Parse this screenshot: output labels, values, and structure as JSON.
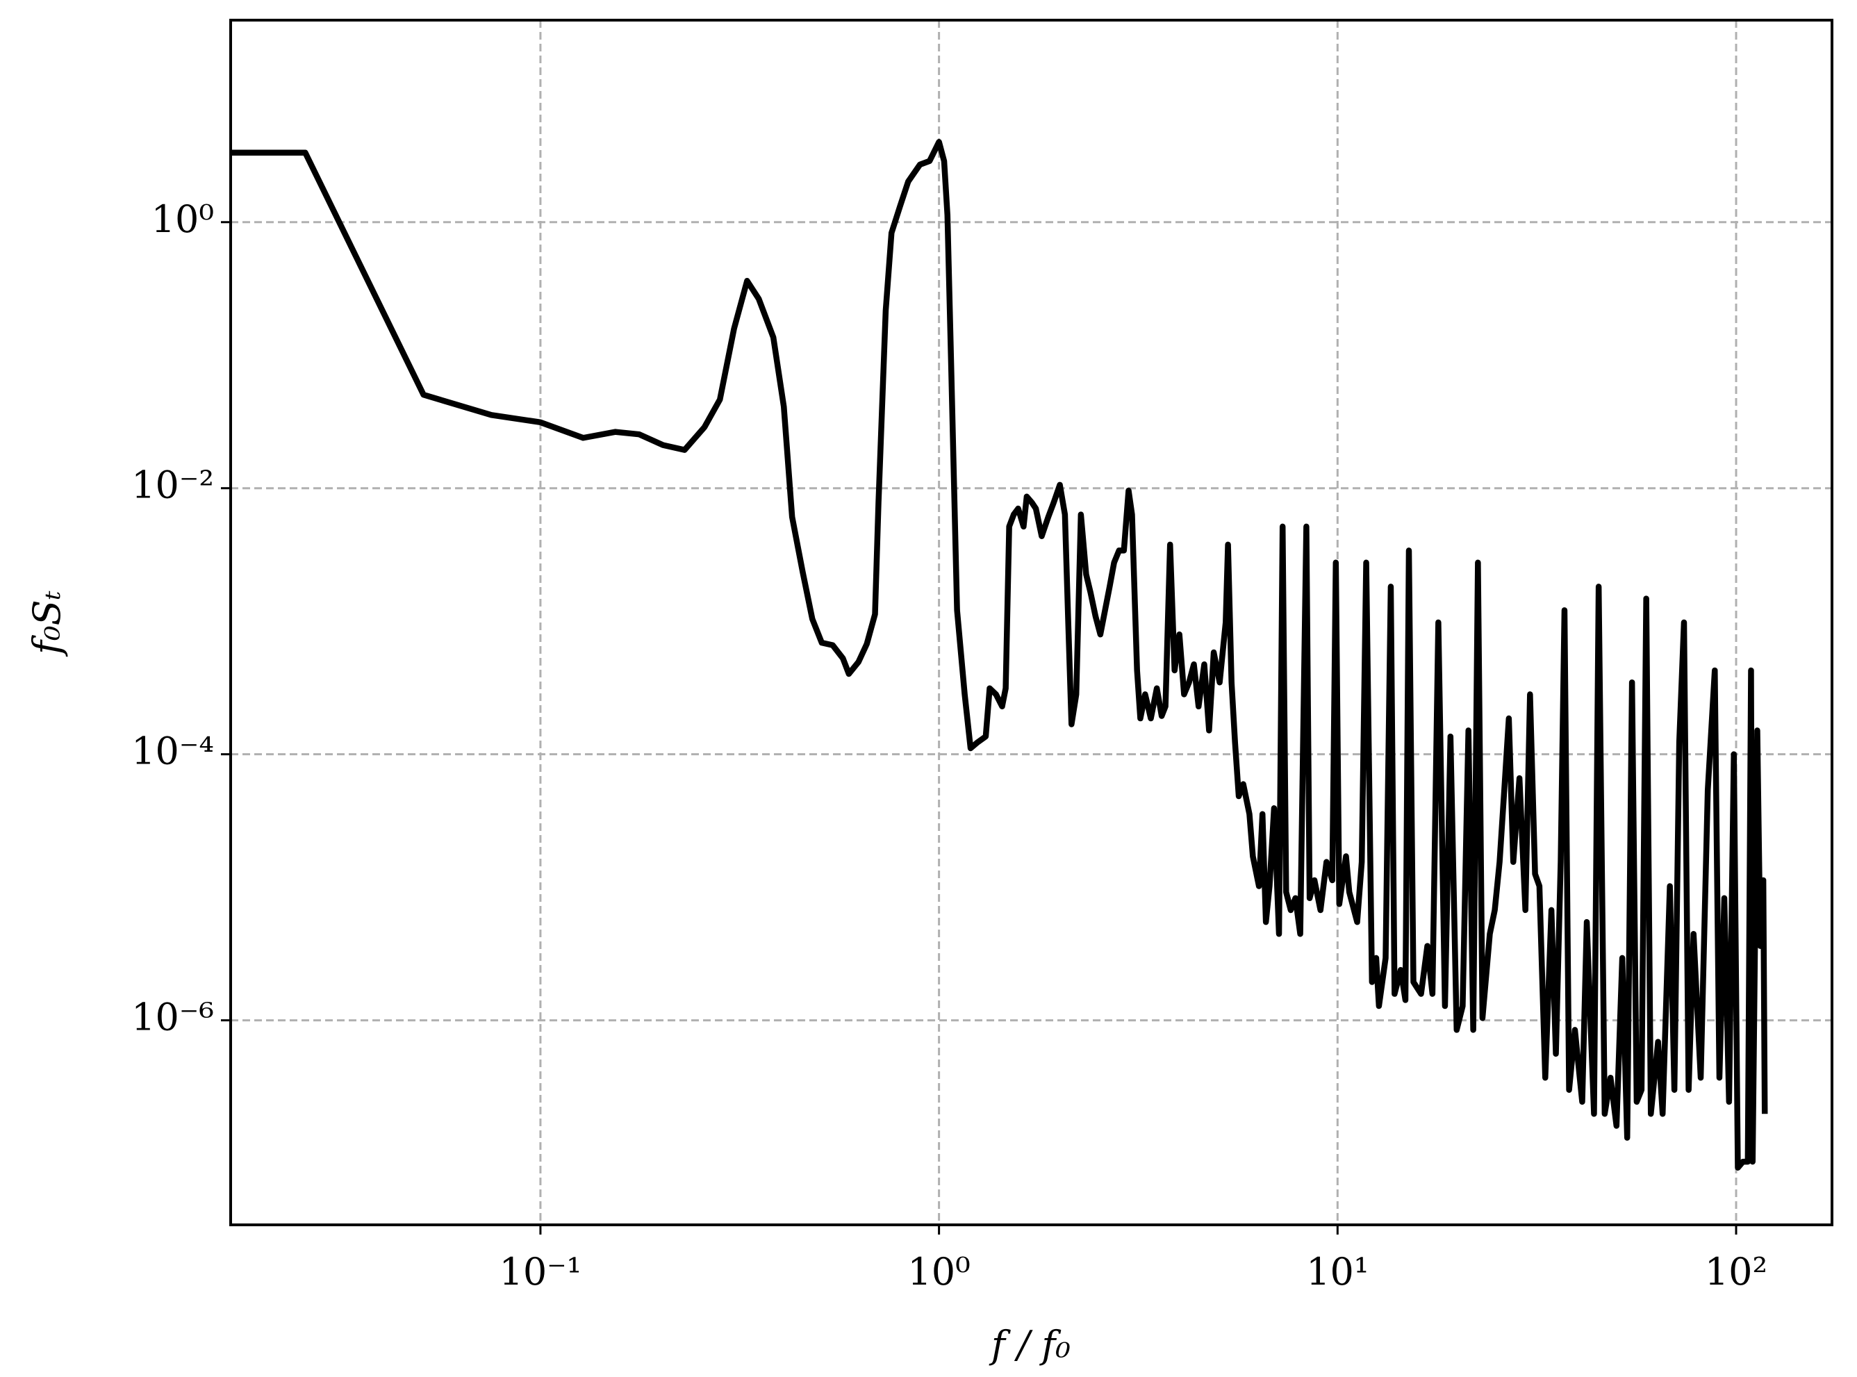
{
  "chart_data": {
    "type": "line",
    "xlabel": "f / f₀",
    "ylabel": "f₀Sₜ",
    "xscale": "log",
    "yscale": "log",
    "grid": true,
    "color": "#000000",
    "xlim": [
      0.0167,
      174
    ],
    "ylim": [
      2.9e-08,
      33
    ],
    "xticks": [
      {
        "value": 0.1,
        "label": "10⁻¹"
      },
      {
        "value": 1,
        "label": "10⁰"
      },
      {
        "value": 10,
        "label": "10¹"
      },
      {
        "value": 100,
        "label": "10²"
      }
    ],
    "yticks": [
      {
        "value": 1e-06,
        "label": "10⁻⁶"
      },
      {
        "value": 0.0001,
        "label": "10⁻⁴"
      },
      {
        "value": 0.01,
        "label": "10⁻²"
      },
      {
        "value": 1,
        "label": "10⁰"
      }
    ],
    "x": [
      0.0167,
      0.0257,
      0.0509,
      0.0753,
      0.1,
      0.128,
      0.154,
      0.177,
      0.203,
      0.23,
      0.258,
      0.282,
      0.306,
      0.33,
      0.353,
      0.384,
      0.408,
      0.428,
      0.455,
      0.481,
      0.508,
      0.541,
      0.574,
      0.594,
      0.628,
      0.659,
      0.691,
      0.705,
      0.735,
      0.76,
      0.798,
      0.837,
      0.896,
      0.947,
      1.0,
      1.03,
      1.05,
      1.07,
      1.11,
      1.16,
      1.2,
      1.25,
      1.31,
      1.34,
      1.39,
      1.44,
      1.47,
      1.5,
      1.54,
      1.58,
      1.63,
      1.66,
      1.71,
      1.75,
      1.81,
      1.88,
      1.94,
      2.01,
      2.07,
      2.11,
      2.15,
      2.21,
      2.27,
      2.34,
      2.4,
      2.47,
      2.54,
      2.61,
      2.68,
      2.75,
      2.83,
      2.91,
      2.99,
      3.05,
      3.14,
      3.2,
      3.29,
      3.4,
      3.52,
      3.62,
      3.7,
      3.8,
      3.9,
      4.01,
      4.12,
      4.24,
      4.36,
      4.48,
      4.63,
      4.76,
      4.89,
      5.06,
      5.24,
      5.31,
      5.42,
      5.53,
      5.65,
      5.8,
      6.01,
      6.13,
      6.35,
      6.48,
      6.61,
      6.75,
      6.93,
      7.13,
      7.28,
      7.43,
      7.63,
      7.84,
      8.06,
      8.35,
      8.51,
      8.75,
      9.06,
      9.38,
      9.7,
      9.9,
      10.1,
      10.5,
      10.7,
      11.2,
      11.5,
      11.8,
      12.2,
      12.5,
      12.7,
      13.2,
      13.6,
      13.9,
      14.4,
      14.8,
      15.1,
      15.5,
      16.2,
      16.8,
      17.3,
      17.9,
      18.6,
      19.2,
      19.9,
      20.6,
      21.3,
      21.9,
      22.5,
      23.1,
      24.1,
      24.8,
      25.5,
      26.2,
      26.9,
      27.6,
      28.6,
      29.6,
      30.4,
      31.3,
      32.1,
      33.2,
      34.4,
      35.3,
      36.3,
      37.1,
      38.1,
      39.4,
      41.1,
      42.2,
      44.0,
      45.2,
      46.8,
      48.4,
      50.1,
      51.8,
      53.3,
      54.8,
      56.3,
      57.9,
      59.5,
      61.1,
      63.7,
      65.4,
      68.2,
      70.0,
      72.0,
      74.0,
      76.0,
      78.2,
      81.5,
      84.9,
      88.4,
      90.8,
      93.4,
      96.0,
      98.7,
      101,
      104,
      107,
      109,
      110,
      113,
      115,
      117,
      118
    ],
    "values": [
      3.33,
      3.33,
      0.0504,
      0.0355,
      0.0313,
      0.0239,
      0.0265,
      0.0254,
      0.0211,
      0.0194,
      0.0288,
      0.0464,
      0.158,
      0.362,
      0.265,
      0.136,
      0.041,
      0.00608,
      0.00234,
      0.00104,
      0.000689,
      0.000661,
      0.000526,
      0.000402,
      0.000494,
      0.000675,
      0.00113,
      0.0078,
      0.216,
      0.83,
      1.31,
      2.02,
      2.71,
      2.88,
      4.01,
      2.88,
      1.13,
      0.116,
      0.00121,
      0.000282,
      0.000111,
      0.000123,
      0.000136,
      0.000313,
      0.000282,
      0.000229,
      0.000313,
      0.00515,
      0.00634,
      0.00703,
      0.00515,
      0.00865,
      0.0078,
      0.00703,
      0.00436,
      0.00608,
      0.0078,
      0.0106,
      0.00634,
      0.00098,
      0.000168,
      0.000282,
      0.00634,
      0.00225,
      0.00164,
      0.00109,
      0.000796,
      0.00121,
      0.00182,
      0.00276,
      0.0034,
      0.0034,
      0.0096,
      0.00634,
      0.000427,
      0.000186,
      0.000282,
      0.000186,
      0.000313,
      0.000194,
      0.000229,
      0.00377,
      0.000427,
      0.000796,
      0.000282,
      0.000347,
      0.000474,
      0.000229,
      0.000474,
      0.000151,
      0.000583,
      0.000347,
      0.00098,
      0.00377,
      0.000347,
      0.000123,
      4.84e-05,
      5.96e-05,
      3.55e-05,
      1.71e-05,
      1.02e-05,
      3.55e-05,
      5.48e-06,
      1.02e-05,
      3.93e-05,
      4.46e-06,
      0.00515,
      9.2e-06,
      6.74e-06,
      8.29e-06,
      4.46e-06,
      0.00515,
      8.29e-06,
      1.13e-05,
      6.74e-06,
      1.55e-05,
      1.13e-05,
      0.00276,
      7.48e-06,
      1.71e-05,
      9.2e-06,
      5.48e-06,
      1.55e-05,
      0.00276,
      1.94e-06,
      2.94e-06,
      1.28e-06,
      2.94e-06,
      0.00182,
      1.58e-06,
      2.39e-06,
      1.42e-06,
      0.0034,
      1.94e-06,
      1.58e-06,
      3.62e-06,
      1.58e-06,
      0.00098,
      1.28e-06,
      0.000136,
      8.47e-07,
      1.28e-06,
      0.000151,
      8.47e-07,
      0.00276,
      1.04e-06,
      4.46e-06,
      6.74e-06,
      1.55e-05,
      5.37e-05,
      0.000186,
      1.55e-05,
      6.61e-05,
      6.74e-06,
      0.000282,
      1.26e-05,
      1.02e-05,
      3.7e-07,
      6.74e-06,
      5.6e-07,
      1.55e-05,
      0.00121,
      3e-07,
      8.47e-07,
      2.44e-07,
      5.48e-06,
      1.98e-07,
      0.00182,
      1.98e-07,
      3.7e-07,
      1.61e-07,
      2.94e-06,
      1.31e-07,
      0.000347,
      2.44e-07,
      3e-07,
      0.00148,
      1.98e-07,
      6.89e-07,
      1.98e-07,
      1.02e-05,
      3e-07,
      0.000123,
      0.00098,
      3e-07,
      4.46e-06,
      3.7e-07,
      5.37e-05,
      0.000427,
      3.7e-07,
      8.29e-06,
      2.44e-07,
      0.0001,
      7.8e-08,
      8.65e-08,
      8.65e-08,
      0.000427,
      8.65e-08,
      0.000151,
      3.62e-06,
      1.13e-05,
      1.98e-07
    ]
  }
}
